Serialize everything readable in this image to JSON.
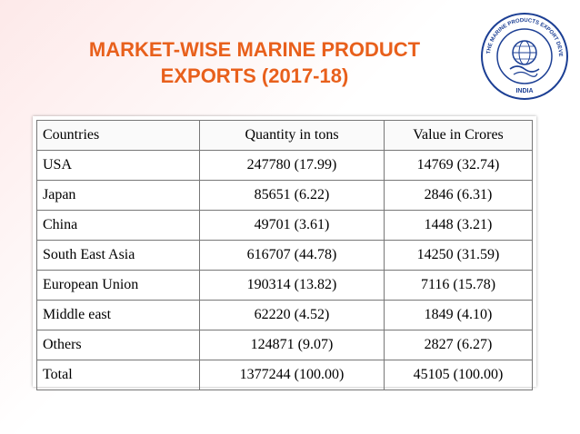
{
  "title": {
    "line1": "MARKET-WISE MARINE PRODUCT",
    "line2": "EXPORTS (2017-18)"
  },
  "logo": {
    "icon": "mpeda-seal-logo",
    "ring_text": "THE MARINE PRODUCTS EXPORT DEVELOPMENT AUTHORITY",
    "bottom_text": "INDIA"
  },
  "table": {
    "headers": [
      "Countries",
      "Quantity in tons",
      "Value in Crores"
    ],
    "rows": [
      [
        "USA",
        "247780 (17.99)",
        "14769 (32.74)"
      ],
      [
        "Japan",
        "85651 (6.22)",
        "2846 (6.31)"
      ],
      [
        "China",
        "49701 (3.61)",
        "1448 (3.21)"
      ],
      [
        "South East Asia",
        "616707 (44.78)",
        "14250  (31.59)"
      ],
      [
        "European Union",
        "190314 (13.82)",
        "7116 (15.78)"
      ],
      [
        "Middle east",
        "62220 (4.52)",
        "1849 (4.10)"
      ],
      [
        "Others",
        "124871 (9.07)",
        "2827  (6.27)"
      ],
      [
        "Total",
        "1377244 (100.00)",
        "45105 (100.00)"
      ]
    ]
  },
  "colors": {
    "title": "#e8601c",
    "logo_blue": "#1c3f94"
  }
}
